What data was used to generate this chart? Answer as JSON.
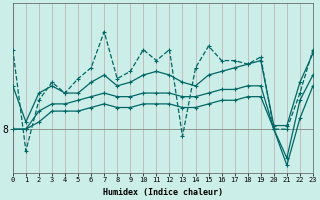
{
  "xlabel": "Humidex (Indice chaleur)",
  "ylabel": "",
  "background_color": "#cceee8",
  "grid_color": "#c0aaaa",
  "line_color": "#006666",
  "x_ticks": [
    0,
    1,
    2,
    3,
    4,
    5,
    6,
    7,
    8,
    9,
    10,
    11,
    12,
    13,
    14,
    15,
    16,
    17,
    18,
    19,
    20,
    21,
    22,
    23
  ],
  "y_tick_labels": [
    "8"
  ],
  "y_tick_positions": [
    8
  ],
  "ylim": [
    6.8,
    11.5
  ],
  "xlim": [
    0,
    23
  ],
  "series": [
    [
      10.2,
      7.4,
      8.8,
      9.3,
      9.0,
      9.4,
      9.7,
      10.7,
      9.4,
      9.6,
      10.2,
      9.9,
      10.2,
      7.8,
      9.7,
      10.3,
      9.9,
      9.9,
      9.8,
      10.0,
      8.0,
      8.0,
      9.0,
      10.2
    ],
    [
      9.2,
      8.2,
      9.0,
      9.2,
      9.0,
      9.0,
      9.3,
      9.5,
      9.2,
      9.3,
      9.5,
      9.6,
      9.5,
      9.3,
      9.2,
      9.5,
      9.6,
      9.7,
      9.8,
      9.9,
      8.1,
      8.1,
      9.3,
      10.1
    ],
    [
      8.0,
      8.0,
      8.5,
      8.7,
      8.7,
      8.8,
      8.9,
      9.0,
      8.9,
      8.9,
      9.0,
      9.0,
      9.0,
      8.9,
      8.9,
      9.0,
      9.1,
      9.1,
      9.2,
      9.2,
      8.0,
      7.2,
      8.8,
      9.5
    ],
    [
      8.0,
      8.0,
      8.2,
      8.5,
      8.5,
      8.5,
      8.6,
      8.7,
      8.6,
      8.6,
      8.7,
      8.7,
      8.7,
      8.6,
      8.6,
      8.7,
      8.8,
      8.8,
      8.9,
      8.9,
      8.0,
      7.0,
      8.3,
      9.2
    ]
  ],
  "linestyles": [
    "--",
    "-",
    "-",
    "-"
  ],
  "linewidths": [
    0.9,
    0.9,
    0.9,
    0.9
  ]
}
